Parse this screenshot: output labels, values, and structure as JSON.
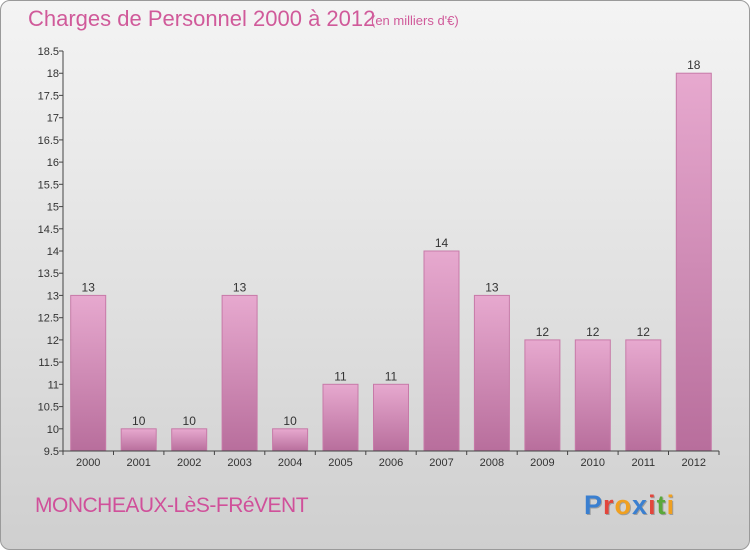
{
  "header": {
    "title": "Charges de Personnel 2000 à 2012",
    "subtitle": "(en milliers d'€)"
  },
  "footer": {
    "commune": "MONCHEAUX-LèS-FRéVENT",
    "logo_text": "Proxiti",
    "logo_colors": [
      "#3a7fd0",
      "#e2463c",
      "#f0a020",
      "#3a7fd0",
      "#e2463c",
      "#5aa83a",
      "#f0a020"
    ]
  },
  "chart_data": {
    "type": "bar",
    "categories": [
      "2000",
      "2001",
      "2002",
      "2003",
      "2004",
      "2005",
      "2006",
      "2007",
      "2008",
      "2009",
      "2010",
      "2011",
      "2012"
    ],
    "values": [
      13,
      10,
      10,
      13,
      10,
      11,
      11,
      14,
      13,
      12,
      12,
      12,
      18
    ],
    "data_labels": [
      "13",
      "10",
      "10",
      "13",
      "10",
      "11",
      "11",
      "14",
      "13",
      "12",
      "12",
      "12",
      "18"
    ],
    "title": "Charges de Personnel 2000 à 2012",
    "subtitle": "(en milliers d'€)",
    "ylim": [
      9.5,
      18.5
    ],
    "yticks": [
      9.5,
      10,
      10.5,
      11,
      11.5,
      12,
      12.5,
      13,
      13.5,
      14,
      14.5,
      15,
      15.5,
      16,
      16.5,
      17,
      17.5,
      18,
      18.5
    ],
    "ytick_labels": [
      "9.5",
      "10",
      "10.5",
      "11",
      "11.5",
      "12",
      "12.5",
      "13",
      "13.5",
      "14",
      "14.5",
      "15",
      "15.5",
      "16",
      "16.5",
      "17",
      "17.5",
      "18",
      "18.5"
    ],
    "grid": false,
    "bar_color": "#d88ab8"
  }
}
